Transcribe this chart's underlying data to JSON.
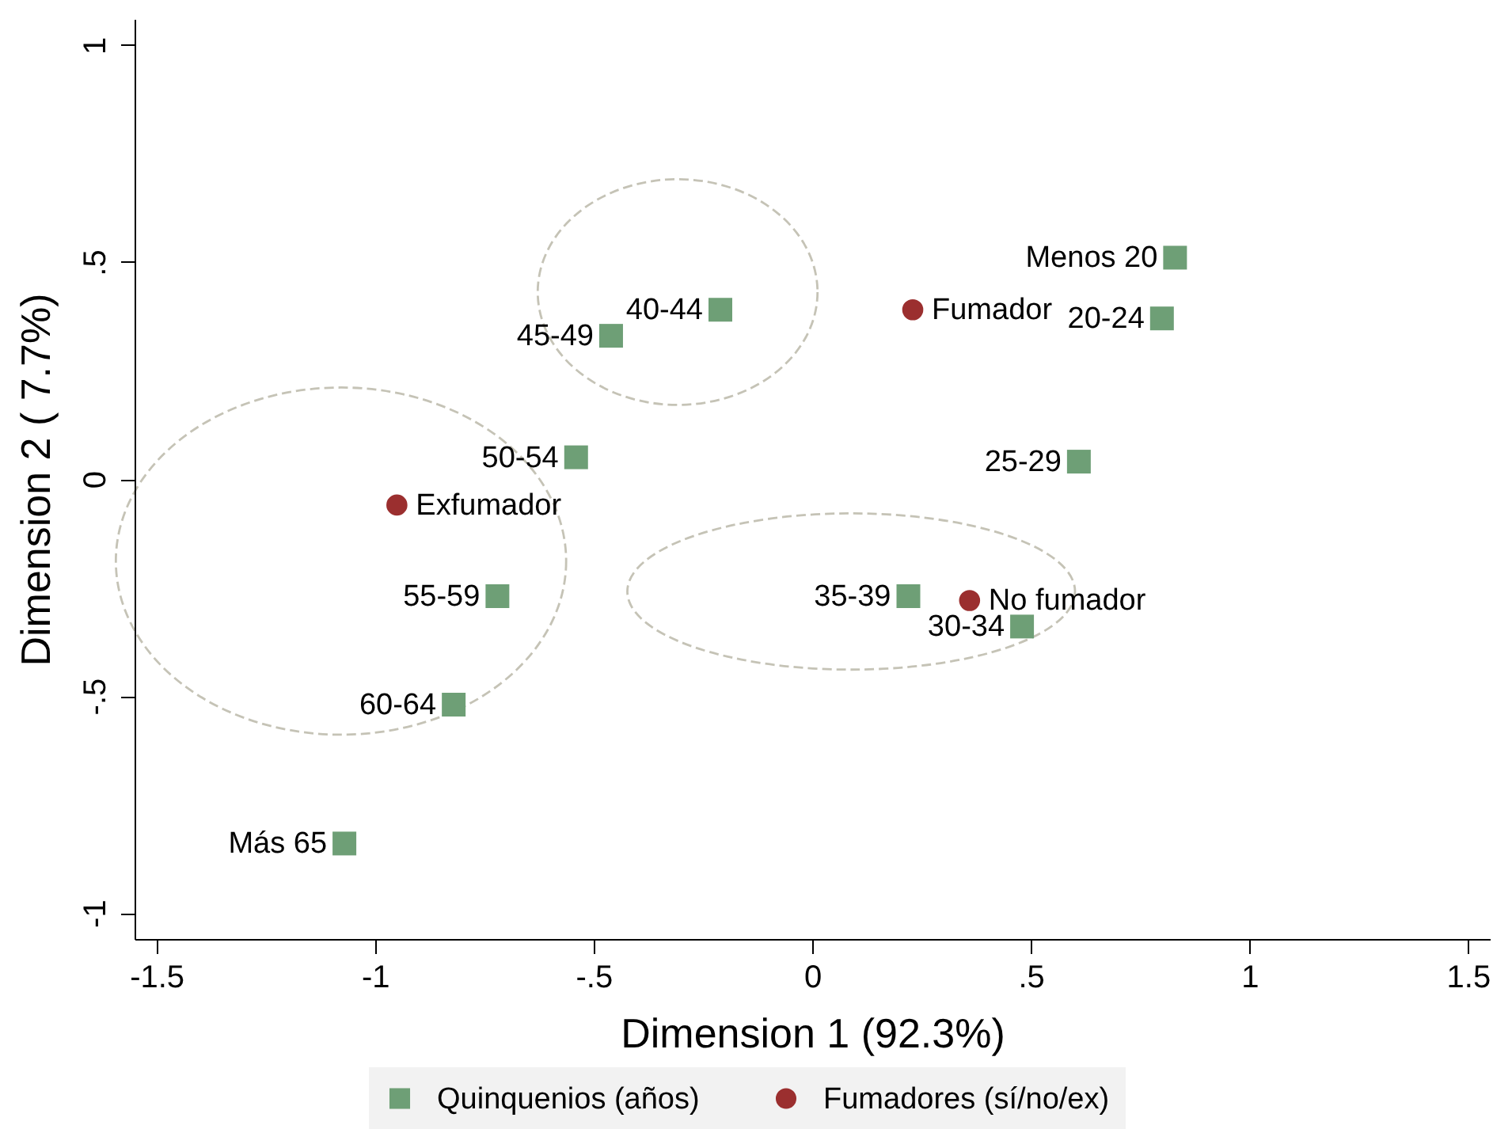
{
  "chart_data": {
    "type": "scatter",
    "xlabel": "Dimension 1 (92.3%)",
    "ylabel": "Dimension 2 ( 7.7%)",
    "xlim": [
      -1.55,
      1.55
    ],
    "ylim": [
      -1.06,
      1.06
    ],
    "xticks": [
      -1.5,
      -1,
      {
        "value": -0.5,
        "label": "-.5"
      },
      0,
      {
        "value": 0.5,
        "label": ".5"
      },
      1,
      1.5
    ],
    "yticks": [
      -1,
      {
        "value": -0.5,
        "label": "-.5"
      },
      0,
      {
        "value": 0.5,
        "label": ".5"
      },
      1
    ],
    "legend": "bottom",
    "series": [
      {
        "name": "Quinquenios (años)",
        "color": "#6e9f76",
        "marker": "square",
        "x": [
          0.83,
          0.8,
          0.61,
          0.48,
          0.22,
          -0.21,
          -0.46,
          -0.54,
          -0.72,
          -0.82,
          -1.07
        ],
        "values": [
          0.51,
          0.37,
          0.04,
          -0.34,
          -0.27,
          0.39,
          0.33,
          0.05,
          -0.27,
          -0.52,
          -0.84
        ]
      },
      {
        "name": "Fumadores (sí/no/ex)",
        "color": "#9b2f2f",
        "marker": "circle",
        "x": [
          0.23,
          0.36,
          -0.95
        ],
        "values": [
          0.39,
          -0.28,
          -0.06
        ]
      }
    ],
    "annotations": [
      {
        "text": "Menos 20",
        "x": 0.83,
        "y": 0.51
      },
      {
        "text": "20-24",
        "x": 0.8,
        "y": 0.37
      },
      {
        "text": "25-29",
        "x": 0.61,
        "y": 0.04
      },
      {
        "text": "30-34",
        "x": 0.48,
        "y": -0.34
      },
      {
        "text": "35-39",
        "x": 0.22,
        "y": -0.27
      },
      {
        "text": "40-44",
        "x": -0.21,
        "y": 0.39
      },
      {
        "text": "45-49",
        "x": -0.46,
        "y": 0.33
      },
      {
        "text": "50-54",
        "x": -0.54,
        "y": 0.05
      },
      {
        "text": "55-59",
        "x": -0.72,
        "y": -0.27
      },
      {
        "text": "60-64",
        "x": -0.82,
        "y": -0.52
      },
      {
        "text": "Más 65",
        "x": -1.07,
        "y": -0.84
      },
      {
        "text": "Fumador",
        "x": 0.23,
        "y": 0.39
      },
      {
        "text": "No fumador",
        "x": 0.36,
        "y": -0.28
      },
      {
        "text": "Exfumador",
        "x": -0.95,
        "y": -0.06
      }
    ]
  }
}
